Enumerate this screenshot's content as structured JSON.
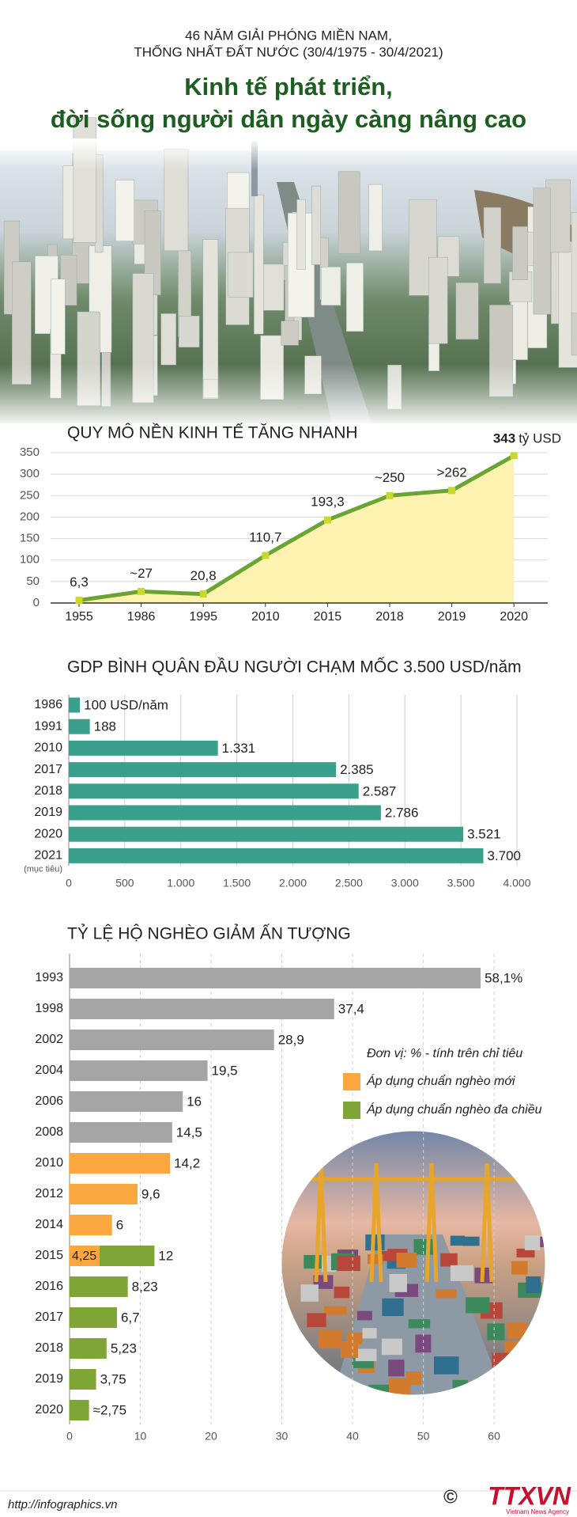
{
  "header": {
    "kicker": [
      "46 NĂM GIẢI PHÓNG MIỀN NAM,",
      "THỐNG NHẤT ĐẤT NƯỚC (30/4/1975 - 30/4/2021)"
    ],
    "title": [
      "Kinh tế phát triển,",
      "đời sống người dân ngày càng nâng cao"
    ]
  },
  "chart_data": [
    {
      "type": "line",
      "title": "QUY MÔ NỀN KINH TẾ TĂNG NHANH",
      "categories": [
        "1955",
        "1986",
        "1995",
        "2010",
        "2015",
        "2018",
        "2019",
        "2020"
      ],
      "values": [
        6.3,
        27,
        20.8,
        110.7,
        193.3,
        250,
        262,
        343
      ],
      "value_labels": [
        "6,3",
        "~27",
        "20,8",
        "110,7",
        "193,3",
        "~250",
        ">262",
        "343"
      ],
      "unit_label": "tỷ USD",
      "color": "#6aa534",
      "area_color": "#fdf2b0",
      "marker_color": "#c9d82b",
      "ylim": [
        0,
        350
      ],
      "yticks": [
        0,
        50,
        100,
        150,
        200,
        250,
        300,
        350
      ],
      "grid": true
    },
    {
      "type": "bar",
      "orientation": "horizontal",
      "title": "GDP BÌNH QUÂN ĐẦU NGƯỜI CHẠM MỐC 3.500 USD/năm",
      "categories": [
        "1986",
        "1991",
        "2010",
        "2017",
        "2018",
        "2019",
        "2020",
        "2021"
      ],
      "category_note": "(mục tiêu)",
      "values": [
        100,
        188,
        1331,
        2385,
        2587,
        2786,
        3521,
        3700
      ],
      "value_labels": [
        "100 USD/năm",
        "188",
        "1.331",
        "2.385",
        "2.587",
        "2.786",
        "3.521",
        "3.700"
      ],
      "color": "#3a9f8b",
      "xlim": [
        0,
        4000
      ],
      "xticks": [
        0,
        500,
        {
          "value": 1000,
          "label": "1.000"
        },
        {
          "value": 1500,
          "label": "1.500"
        },
        {
          "value": 2000,
          "label": "2.000"
        },
        {
          "value": 2500,
          "label": "2.500"
        },
        {
          "value": 3000,
          "label": "3.000"
        },
        {
          "value": 3500,
          "label": "3.500"
        },
        {
          "value": 4000,
          "label": "4.000"
        }
      ],
      "grid": true
    },
    {
      "type": "bar",
      "orientation": "horizontal",
      "title": "TỶ LỆ HỘ NGHÈO GIẢM ẤN TƯỢNG",
      "note": "Đơn vị: % - tính trên chỉ tiêu",
      "categories": [
        "1993",
        "1998",
        "2002",
        "2004",
        "2006",
        "2008",
        "2010",
        "2012",
        "2014",
        "2015",
        "2016",
        "2017",
        "2018",
        "2019",
        "2020"
      ],
      "series": [
        {
          "color": "#a5a5a5",
          "values": [
            58.1,
            37.4,
            28.9,
            19.5,
            16,
            14.5,
            null,
            null,
            null,
            null,
            null,
            null,
            null,
            null,
            null
          ],
          "value_labels": [
            "58,1%",
            "37,4",
            "28,9",
            "19,5",
            "16",
            "14,5",
            null,
            null,
            null,
            null,
            null,
            null,
            null,
            null,
            null
          ]
        },
        {
          "name": "Áp dụng chuẩn nghèo mới",
          "color": "#f9a73e",
          "values": [
            null,
            null,
            null,
            null,
            null,
            null,
            14.2,
            9.6,
            6,
            4.25,
            null,
            null,
            null,
            null,
            null
          ],
          "value_labels": [
            null,
            null,
            null,
            null,
            null,
            null,
            "14,2",
            "9,6",
            "6",
            "4,25",
            null,
            null,
            null,
            null,
            null
          ]
        },
        {
          "name": "Áp dụng chuẩn nghèo đa chiều",
          "color": "#7fa536",
          "values": [
            null,
            null,
            null,
            null,
            null,
            null,
            null,
            null,
            null,
            12,
            8.23,
            6.7,
            5.23,
            3.75,
            2.75
          ],
          "value_labels": [
            null,
            null,
            null,
            null,
            null,
            null,
            null,
            null,
            null,
            "12",
            "8,23",
            "6,7",
            "5,23",
            "3,75",
            "≈2,75"
          ]
        }
      ],
      "xlim": [
        0,
        62
      ],
      "xticks": [
        0,
        10,
        20,
        30,
        40,
        50,
        60
      ],
      "grid": true
    }
  ],
  "footer": {
    "url": "http://infographics.vn",
    "copyright": "©",
    "logo": "TTXVN",
    "agency": "Vietnam News Agency"
  }
}
